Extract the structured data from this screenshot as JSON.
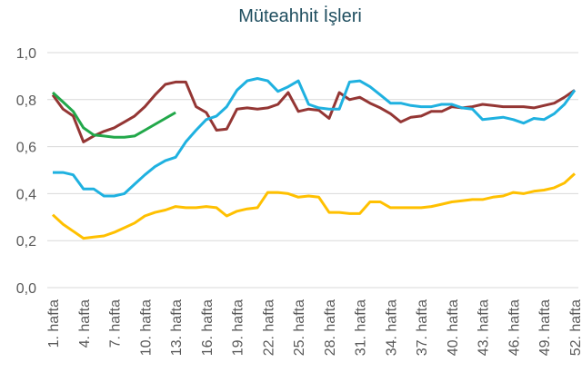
{
  "chart_data": {
    "type": "line",
    "title": "Müteahhit İşleri",
    "categories": [
      "1. hafta",
      null,
      null,
      "4. hafta",
      null,
      null,
      "7. hafta",
      null,
      null,
      "10. hafta",
      null,
      null,
      "13. hafta",
      null,
      null,
      "16. hafta",
      null,
      null,
      "19. hafta",
      null,
      null,
      "22. hafta",
      null,
      null,
      "25. hafta",
      null,
      null,
      "28. hafta",
      null,
      null,
      "31. hafta",
      null,
      null,
      "34. hafta",
      null,
      null,
      "37. hafta",
      null,
      null,
      "40. hafta",
      null,
      null,
      "43. hafta",
      null,
      null,
      "46. hafta",
      null,
      null,
      "49. hafta",
      null,
      null,
      "52. hafta"
    ],
    "series": [
      {
        "color": "#943634",
        "values": [
          0.82,
          0.76,
          0.73,
          0.62,
          0.645,
          0.665,
          0.68,
          0.705,
          0.73,
          0.77,
          0.82,
          0.865,
          0.875,
          0.875,
          0.77,
          0.745,
          0.67,
          0.675,
          0.76,
          0.765,
          0.76,
          0.765,
          0.78,
          0.83,
          0.75,
          0.76,
          0.755,
          0.72,
          0.83,
          0.8,
          0.81,
          0.785,
          0.765,
          0.74,
          0.705,
          0.725,
          0.73,
          0.75,
          0.75,
          0.77,
          0.765,
          0.77,
          0.78,
          0.775,
          0.77,
          0.77,
          0.77,
          0.765,
          0.775,
          0.785,
          0.81,
          0.84
        ]
      },
      {
        "color": "#1fb1e0",
        "values": [
          0.49,
          0.49,
          0.48,
          0.42,
          0.42,
          0.39,
          0.39,
          0.4,
          0.44,
          0.48,
          0.515,
          0.54,
          0.555,
          0.62,
          0.67,
          0.715,
          0.73,
          0.77,
          0.84,
          0.88,
          0.89,
          0.88,
          0.835,
          0.855,
          0.88,
          0.78,
          0.765,
          0.76,
          0.76,
          0.875,
          0.88,
          0.855,
          0.82,
          0.785,
          0.785,
          0.775,
          0.77,
          0.77,
          0.78,
          0.78,
          0.765,
          0.76,
          0.715,
          0.72,
          0.725,
          0.715,
          0.7,
          0.72,
          0.715,
          0.74,
          0.78,
          0.84
        ]
      },
      {
        "color": "#ffc000",
        "values": [
          0.31,
          0.27,
          0.24,
          0.21,
          0.215,
          0.22,
          0.235,
          0.255,
          0.275,
          0.305,
          0.32,
          0.33,
          0.345,
          0.34,
          0.34,
          0.345,
          0.34,
          0.305,
          0.325,
          0.335,
          0.34,
          0.405,
          0.405,
          0.4,
          0.385,
          0.39,
          0.385,
          0.32,
          0.32,
          0.315,
          0.315,
          0.365,
          0.365,
          0.34,
          0.34,
          0.34,
          0.34,
          0.345,
          0.355,
          0.365,
          0.37,
          0.375,
          0.375,
          0.385,
          0.39,
          0.405,
          0.4,
          0.41,
          0.415,
          0.425,
          0.445,
          0.485
        ]
      },
      {
        "color": "#22a84a",
        "values": [
          0.83,
          0.79,
          0.75,
          0.68,
          0.65,
          0.645,
          0.64,
          0.64,
          0.645,
          0.67,
          0.695,
          0.72,
          0.745,
          null,
          null,
          null,
          null,
          null,
          null,
          null,
          null,
          null,
          null,
          null,
          null,
          null,
          null,
          null,
          null,
          null,
          null,
          null,
          null,
          null,
          null,
          null,
          null,
          null,
          null,
          null,
          null,
          null,
          null,
          null,
          null,
          null,
          null,
          null,
          null,
          null,
          null,
          null
        ]
      }
    ],
    "ylim": [
      0,
      1
    ],
    "yticks": [
      {
        "value": 0,
        "label": "0,0"
      },
      {
        "value": 0.2,
        "label": "0,2"
      },
      {
        "value": 0.4,
        "label": "0,4"
      },
      {
        "value": 0.6,
        "label": "0,6"
      },
      {
        "value": 0.8,
        "label": "0,8"
      },
      {
        "value": 1,
        "label": "1,0"
      }
    ],
    "grid": true
  }
}
